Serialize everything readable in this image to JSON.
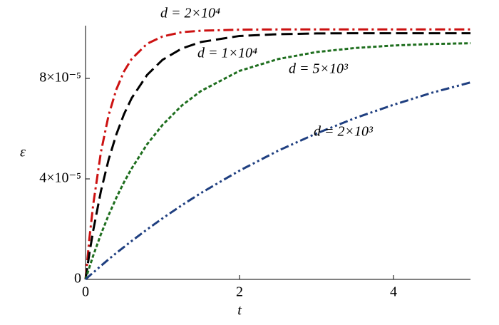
{
  "chart_data": {
    "type": "line",
    "xlabel": "t",
    "ylabel": "ε",
    "x": [
      0,
      0.05,
      0.1,
      0.2,
      0.3,
      0.4,
      0.5,
      0.6,
      0.8,
      1,
      1.25,
      1.5,
      2,
      2.5,
      3,
      3.5,
      4,
      4.5,
      5
    ],
    "series": [
      {
        "name": "d = 2×10⁴",
        "color": "#cc1111",
        "dash": "dashdot",
        "values": [
          0,
          1.63e-05,
          2.99e-05,
          5.07e-05,
          6.54e-05,
          7.56e-05,
          8.28e-05,
          8.78e-05,
          9.38e-05,
          9.67e-05,
          9.84e-05,
          9.9e-05,
          9.94e-05,
          9.95e-05,
          9.95e-05,
          9.95e-05,
          9.95e-05,
          9.95e-05,
          9.95e-05
        ]
      },
      {
        "name": "d = 1×10⁴",
        "color": "#000000",
        "dash": "dash",
        "values": [
          0,
          1.03e-05,
          1.95e-05,
          3.52e-05,
          4.77e-05,
          5.77e-05,
          6.58e-05,
          7.22e-05,
          8.14e-05,
          8.74e-05,
          9.19e-05,
          9.45e-05,
          9.69e-05,
          9.76e-05,
          9.79e-05,
          9.8e-05,
          9.8e-05,
          9.8e-05,
          9.8e-05
        ]
      },
      {
        "name": "d = 5×10³",
        "color": "#1e6e1e",
        "dash": "dot",
        "values": [
          0,
          4.8e-06,
          9.5e-06,
          1.8e-05,
          2.56e-05,
          3.25e-05,
          3.87e-05,
          4.42e-05,
          5.38e-05,
          6.15e-05,
          6.92e-05,
          7.5e-05,
          8.3e-05,
          8.77e-05,
          9.05e-05,
          9.21e-05,
          9.31e-05,
          9.37e-05,
          9.4e-05
        ]
      },
      {
        "name": "d = 2×10³",
        "color": "#1f3f80",
        "dash": "dashdotdot",
        "values": [
          0,
          1.4e-06,
          2.7e-06,
          5.4e-06,
          8e-06,
          1.05e-05,
          1.29e-05,
          1.53e-05,
          1.99e-05,
          2.43e-05,
          2.95e-05,
          3.44e-05,
          4.33e-05,
          5.12e-05,
          5.81e-05,
          6.42e-05,
          6.95e-05,
          7.43e-05,
          7.84e-05
        ]
      }
    ],
    "xlim": [
      0,
      5
    ],
    "xticks": [
      0,
      2,
      4
    ],
    "ylim": [
      0,
      0.000101
    ],
    "yticks": [
      0,
      {
        "value": 4e-05,
        "label": "4×10⁻⁵"
      },
      {
        "value": 8e-05,
        "label": "8×10⁻⁵"
      }
    ]
  }
}
